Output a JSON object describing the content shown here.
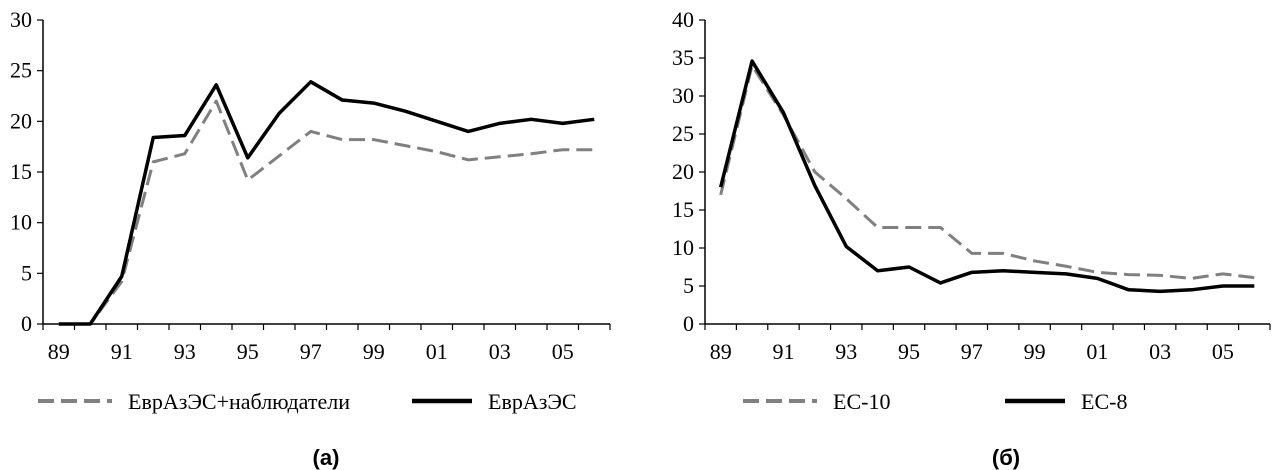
{
  "chart_data": [
    {
      "type": "line",
      "caption": "(а)",
      "x": [
        "89",
        "90",
        "91",
        "92",
        "93",
        "94",
        "95",
        "96",
        "97",
        "98",
        "99",
        "00",
        "01",
        "02",
        "03",
        "04",
        "05",
        "06"
      ],
      "x_tick_labels": [
        "89",
        "91",
        "93",
        "95",
        "97",
        "99",
        "01",
        "03",
        "05"
      ],
      "ylim": [
        0,
        30
      ],
      "y_ticks": [
        "0",
        "5",
        "10",
        "15",
        "20",
        "25",
        "30"
      ],
      "grid": false,
      "legend_position": "bottom",
      "series": [
        {
          "name": "ЕврАзЭС+наблюдатели",
          "style": "dashed",
          "color": "#808080",
          "values": [
            0,
            0,
            4.2,
            16,
            16.8,
            22,
            14.2,
            16.6,
            19,
            18.2,
            18.2,
            17.6,
            17,
            16.2,
            16.5,
            16.8,
            17.2,
            17.2
          ]
        },
        {
          "name": "ЕврАзЭС",
          "style": "solid",
          "color": "#000000",
          "values": [
            0,
            0,
            4.7,
            18.4,
            18.6,
            23.6,
            16.4,
            20.8,
            23.9,
            22.1,
            21.8,
            21,
            20,
            19,
            19.8,
            20.2,
            19.8,
            20.2
          ]
        }
      ]
    },
    {
      "type": "line",
      "caption": "(б)",
      "x": [
        "89",
        "90",
        "91",
        "92",
        "93",
        "94",
        "95",
        "96",
        "97",
        "98",
        "99",
        "00",
        "01",
        "02",
        "03",
        "04",
        "05",
        "06"
      ],
      "x_tick_labels": [
        "89",
        "91",
        "93",
        "95",
        "97",
        "99",
        "01",
        "03",
        "05"
      ],
      "ylim": [
        0,
        40
      ],
      "y_ticks": [
        "0",
        "5",
        "10",
        "15",
        "20",
        "25",
        "30",
        "35",
        "40"
      ],
      "grid": false,
      "legend_position": "bottom",
      "series": [
        {
          "name": "ЕС-10",
          "style": "dashed",
          "color": "#808080",
          "values": [
            17,
            34,
            27.5,
            20,
            16.5,
            12.7,
            12.7,
            12.7,
            9.3,
            9.3,
            8.3,
            7.6,
            6.8,
            6.5,
            6.4,
            6,
            6.6,
            6.1
          ]
        },
        {
          "name": "ЕС-8",
          "style": "solid",
          "color": "#000000",
          "values": [
            18,
            34.6,
            27.8,
            18.2,
            10.2,
            7,
            7.5,
            5.4,
            6.8,
            7,
            6.8,
            6.6,
            6,
            4.5,
            4.3,
            4.5,
            5,
            5
          ]
        }
      ]
    }
  ]
}
